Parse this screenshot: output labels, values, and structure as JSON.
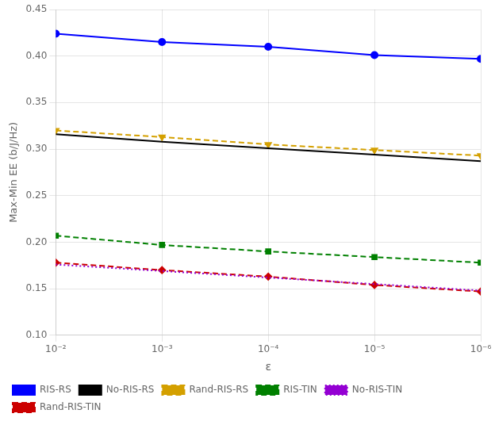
{
  "chart_data": {
    "type": "line",
    "xlabel": "ε",
    "ylabel": "Max-Min EE (b/J/Hz)",
    "x": [
      0.01,
      0.001,
      0.0001,
      1e-05,
      1e-06
    ],
    "series": [
      {
        "name": "RIS-RS",
        "color": "#0000ff",
        "marker": "circle",
        "line_style": "solid",
        "values": [
          0.424,
          0.415,
          0.41,
          0.401,
          0.397
        ]
      },
      {
        "name": "No-RIS-RS",
        "color": "#000000",
        "marker": "none",
        "line_style": "solid",
        "values": [
          0.316,
          0.308,
          0.301,
          0.294,
          0.287
        ]
      },
      {
        "name": "Rand-RIS-RS",
        "color": "#d4a000",
        "marker": "triangle_down",
        "line_style": "dashed",
        "values": [
          0.32,
          0.313,
          0.305,
          0.299,
          0.293
        ]
      },
      {
        "name": "RIS-TIN",
        "color": "#008000",
        "marker": "square",
        "line_style": "dashed",
        "values": [
          0.207,
          0.197,
          0.19,
          0.184,
          0.178
        ]
      },
      {
        "name": "No-RIS-TIN",
        "color": "#9400d3",
        "marker": "none",
        "line_style": "dotted",
        "values": [
          0.176,
          0.169,
          0.162,
          0.155,
          0.148
        ]
      },
      {
        "name": "Rand-RIS-TIN",
        "color": "#cc0000",
        "marker": "diamond",
        "line_style": "dashed",
        "values": [
          0.178,
          0.17,
          0.163,
          0.154,
          0.147
        ]
      }
    ],
    "log": "x",
    "xlim": [
      0.01,
      1e-06
    ],
    "xticks": [
      {
        "value": 0.01,
        "label": "10⁻²"
      },
      {
        "value": 0.001,
        "label": "10⁻³"
      },
      {
        "value": 0.0001,
        "label": "10⁻⁴"
      },
      {
        "value": 1e-05,
        "label": "10⁻⁵"
      },
      {
        "value": 1e-06,
        "label": "10⁻⁶"
      }
    ],
    "ylim": [
      0.1,
      0.45
    ],
    "yticks": [
      {
        "value": 0.1,
        "label": "0.10"
      },
      0.15,
      {
        "value": 0.2,
        "label": "0.20"
      },
      0.25,
      {
        "value": 0.3,
        "label": "0.30"
      },
      0.35,
      {
        "value": 0.4,
        "label": "0.40"
      },
      0.45
    ],
    "grid": true,
    "legend": "lower left"
  }
}
